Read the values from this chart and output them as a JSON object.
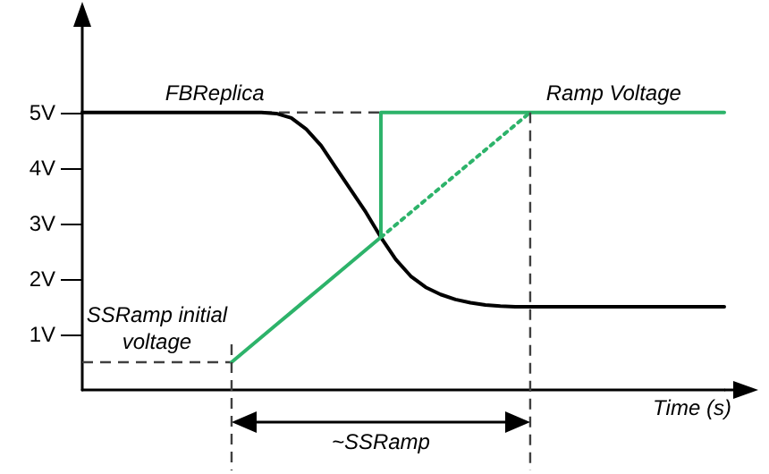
{
  "chart_data": {
    "type": "line",
    "tick_labels": "y",
    "categories": [
      null,
      null,
      null,
      null,
      null,
      null,
      null,
      null,
      null,
      null,
      null,
      null,
      null,
      null,
      null,
      null,
      null,
      null,
      null,
      null,
      null,
      null,
      null,
      null,
      null,
      null,
      null,
      null,
      null,
      null,
      null,
      null,
      null,
      null,
      null,
      null,
      null,
      null,
      null,
      null,
      null,
      null,
      null,
      null
    ],
    "ylim": [
      0,
      6.8
    ],
    "yticks": [
      {
        "value": 1,
        "label": "1V"
      },
      {
        "value": 2,
        "label": "2V"
      },
      {
        "value": 3,
        "label": "3V"
      },
      {
        "value": 4,
        "label": "4V"
      },
      {
        "value": 5,
        "label": "5V"
      }
    ],
    "series": [
      {
        "name": "FBReplica",
        "color": "#000000",
        "values": [
          5,
          5,
          5,
          5,
          5,
          5,
          5,
          5,
          5,
          5,
          5,
          5,
          5,
          4.98,
          4.9,
          4.7,
          4.4,
          4.0,
          3.6,
          3.2,
          2.75,
          2.35,
          2.05,
          1.85,
          1.72,
          1.63,
          1.57,
          1.53,
          1.51,
          1.5,
          1.5,
          1.5,
          1.5,
          1.5,
          1.5,
          1.5,
          1.5,
          1.5,
          1.5,
          1.5,
          1.5,
          1.5,
          1.5,
          1.5
        ]
      },
      {
        "color": "#2db36a",
        "values": [
          null,
          null,
          null,
          null,
          null,
          null,
          null,
          null,
          null,
          null,
          0.5,
          0.725,
          0.95,
          1.175,
          1.4,
          1.625,
          1.85,
          2.075,
          2.3,
          2.525,
          2.75,
          null,
          null,
          null,
          null,
          null,
          null,
          null,
          null,
          null,
          null,
          null,
          null,
          null,
          null,
          null,
          null,
          null,
          null,
          null,
          null,
          null,
          null,
          null
        ]
      },
      {
        "color": "#2db36a",
        "line_style": "dotted",
        "values": [
          null,
          null,
          null,
          null,
          null,
          null,
          null,
          null,
          null,
          null,
          null,
          null,
          null,
          null,
          null,
          null,
          null,
          null,
          null,
          null,
          2.75,
          2.975,
          3.2,
          3.425,
          3.65,
          3.875,
          4.1,
          4.325,
          4.55,
          4.775,
          5,
          null,
          null,
          null,
          null,
          null,
          null,
          null,
          null,
          null,
          null,
          null,
          null,
          null
        ]
      },
      {
        "type": "step",
        "name": "Ramp Voltage",
        "color": "#2db36a",
        "values": [
          null,
          null,
          null,
          null,
          null,
          null,
          null,
          null,
          null,
          null,
          null,
          null,
          null,
          null,
          null,
          null,
          null,
          null,
          null,
          null,
          2.75,
          5,
          5,
          5,
          5,
          5,
          5,
          5,
          5,
          5,
          5,
          5,
          5,
          5,
          5,
          5,
          5,
          5,
          5,
          5,
          5,
          5,
          5,
          5
        ]
      }
    ],
    "ref_lines": [
      {
        "axis": "y",
        "value": 5,
        "color": "#404040",
        "line_style": "dashed"
      },
      {
        "axis": "y",
        "value": 0.5,
        "color": "#404040",
        "line_style": "dashed",
        "label": "SSRamp initial voltage"
      }
    ],
    "annotations": [
      "~SSRamp",
      "Time (s)"
    ]
  }
}
